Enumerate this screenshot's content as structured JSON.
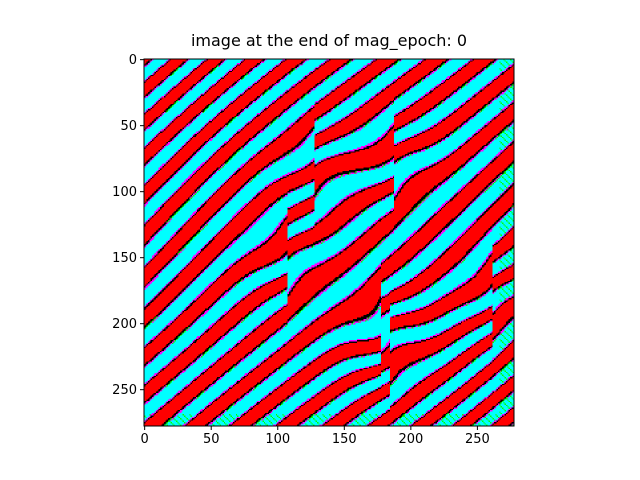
{
  "chart_data": {
    "type": "heatmap",
    "title": "image at the end of mag_epoch: 0",
    "xlabel": "",
    "ylabel": "",
    "image_size": [
      278,
      278
    ],
    "xlim": [
      0,
      278
    ],
    "ylim": [
      278,
      0
    ],
    "xticks": [
      0,
      50,
      100,
      150,
      200,
      250
    ],
    "yticks": [
      0,
      50,
      100,
      150,
      200,
      250
    ],
    "grid": false,
    "legend": "none",
    "stripe_colors": {
      "band_a": "#ff0000",
      "band_b": "#00ffff",
      "edge_dark": "#000000",
      "edge_light": "#ff00ff",
      "edge_green": "#00ff00"
    },
    "stripe_orientation": "diagonal, rising to the upper right",
    "stripe_period_px": 32,
    "defects": [
      {
        "x": 108,
        "y": 150
      },
      {
        "x": 128,
        "y": 82
      },
      {
        "x": 188,
        "y": 78
      },
      {
        "x": 178,
        "y": 200
      },
      {
        "x": 185,
        "y": 222
      },
      {
        "x": 262,
        "y": 180
      }
    ]
  }
}
